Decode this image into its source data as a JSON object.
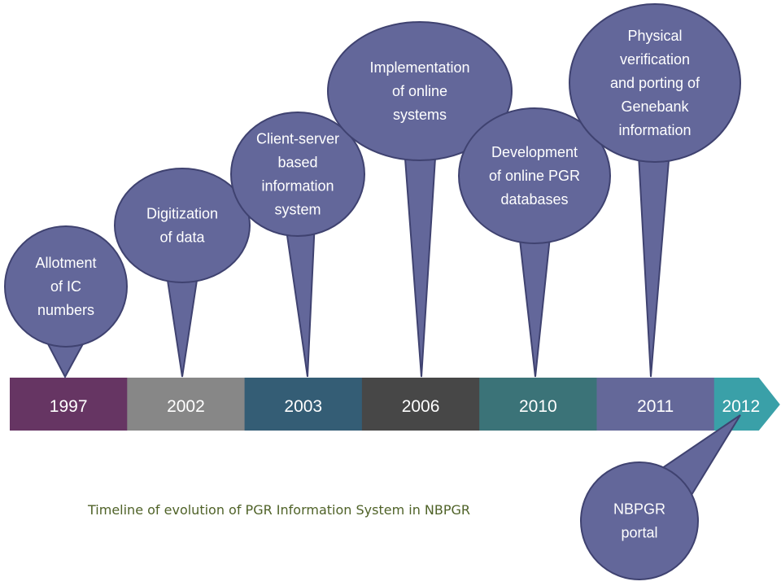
{
  "caption": "Timeline of evolution of PGR Information System in NBPGR",
  "colors": {
    "bubble_fill": "#63679a",
    "bubble_border": "#3f4270",
    "caption": "#4f6228"
  },
  "timeline": [
    {
      "year": "1997",
      "color": "#663563"
    },
    {
      "year": "2002",
      "color": "#878787"
    },
    {
      "year": "2003",
      "color": "#345d75"
    },
    {
      "year": "2006",
      "color": "#474747"
    },
    {
      "year": "2010",
      "color": "#3b7378"
    },
    {
      "year": "2011",
      "color": "#646899"
    },
    {
      "year": "2012",
      "color": "#3aa0a8"
    }
  ],
  "milestones": [
    {
      "year": "1997",
      "lines": [
        "Allotment",
        "of IC",
        "numbers"
      ]
    },
    {
      "year": "2002",
      "lines": [
        "Digitization",
        "of data"
      ]
    },
    {
      "year": "2003",
      "lines": [
        "Client-server",
        "based",
        "information",
        "system"
      ]
    },
    {
      "year": "2006",
      "lines": [
        "Implementation",
        "of online",
        "systems"
      ]
    },
    {
      "year": "2010",
      "lines": [
        "Development",
        "of online PGR",
        "databases"
      ]
    },
    {
      "year": "2011",
      "lines": [
        "Physical",
        "verification",
        "and porting of",
        "Genebank",
        "information"
      ]
    },
    {
      "year": "2012",
      "lines": [
        "NBPGR",
        "portal"
      ]
    }
  ]
}
